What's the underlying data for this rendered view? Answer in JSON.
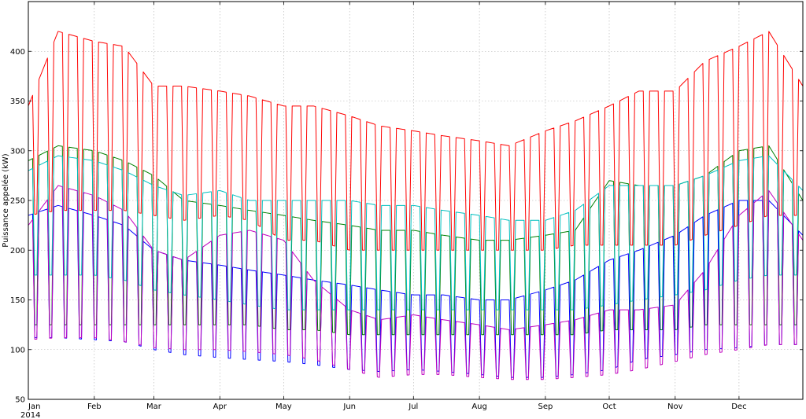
{
  "chart_data": {
    "type": "line",
    "title": "",
    "xlabel": "",
    "ylabel": "Puissance appelée (kW)",
    "ylim": [
      50,
      450
    ],
    "yticks": [
      50,
      100,
      150,
      200,
      250,
      300,
      350,
      400
    ],
    "xlim": [
      "2014-01-01",
      "2014-12-31"
    ],
    "xticks": [
      {
        "date": "2014-01-01",
        "label": "Jan"
      },
      {
        "date": "2014-02-01",
        "label": "Feb"
      },
      {
        "date": "2014-03-01",
        "label": "Mar"
      },
      {
        "date": "2014-04-01",
        "label": "Apr"
      },
      {
        "date": "2014-05-01",
        "label": "May"
      },
      {
        "date": "2014-06-01",
        "label": "Jun"
      },
      {
        "date": "2014-07-01",
        "label": "Jul"
      },
      {
        "date": "2014-08-01",
        "label": "Aug"
      },
      {
        "date": "2014-09-01",
        "label": "Sep"
      },
      {
        "date": "2014-10-01",
        "label": "Oct"
      },
      {
        "date": "2014-11-01",
        "label": "Nov"
      },
      {
        "date": "2014-12-01",
        "label": "Dec"
      }
    ],
    "year_label": "2014",
    "grid": true,
    "sampling": "daily",
    "series": [
      {
        "color": "#ff0000",
        "weekday_envelope": {
          "dates": [
            "2014-01-01",
            "2014-01-15",
            "2014-02-01",
            "2014-02-15",
            "2014-03-01",
            "2014-03-15",
            "2014-04-01",
            "2014-04-15",
            "2014-05-01",
            "2014-05-15",
            "2014-06-01",
            "2014-06-15",
            "2014-07-01",
            "2014-07-15",
            "2014-08-01",
            "2014-08-15",
            "2014-09-01",
            "2014-09-15",
            "2014-10-01",
            "2014-10-15",
            "2014-11-01",
            "2014-11-15",
            "2014-12-01",
            "2014-12-15",
            "2014-12-31"
          ],
          "weekday": [
            345,
            420,
            410,
            405,
            365,
            365,
            360,
            355,
            345,
            345,
            335,
            325,
            320,
            315,
            310,
            305,
            320,
            330,
            345,
            360,
            360,
            390,
            405,
            420,
            365
          ],
          "weekend": [
            235,
            240,
            240,
            240,
            235,
            230,
            235,
            230,
            210,
            210,
            200,
            200,
            200,
            200,
            200,
            200,
            200,
            205,
            205,
            205,
            205,
            215,
            225,
            235,
            235
          ]
        }
      },
      {
        "color": "#008000",
        "weekday_envelope": {
          "dates": [
            "2014-01-01",
            "2014-01-15",
            "2014-02-01",
            "2014-02-15",
            "2014-03-01",
            "2014-03-15",
            "2014-04-01",
            "2014-04-15",
            "2014-05-01",
            "2014-05-15",
            "2014-06-01",
            "2014-06-15",
            "2014-07-01",
            "2014-07-15",
            "2014-08-01",
            "2014-08-15",
            "2014-09-01",
            "2014-09-15",
            "2014-10-01",
            "2014-10-15",
            "2014-11-01",
            "2014-11-15",
            "2014-12-01",
            "2014-12-15",
            "2014-12-31"
          ],
          "weekday": [
            290,
            305,
            300,
            290,
            275,
            250,
            245,
            240,
            235,
            230,
            225,
            220,
            220,
            215,
            210,
            210,
            215,
            220,
            270,
            265,
            265,
            275,
            300,
            305,
            250
          ],
          "weekend": [
            125,
            125,
            125,
            125,
            125,
            125,
            125,
            125,
            120,
            120,
            115,
            115,
            115,
            115,
            115,
            115,
            115,
            115,
            120,
            120,
            120,
            125,
            125,
            125,
            125
          ]
        }
      },
      {
        "color": "#00bfbf",
        "weekday_envelope": {
          "dates": [
            "2014-01-01",
            "2014-01-15",
            "2014-02-01",
            "2014-02-15",
            "2014-03-01",
            "2014-03-15",
            "2014-04-01",
            "2014-04-15",
            "2014-05-01",
            "2014-05-15",
            "2014-06-01",
            "2014-06-15",
            "2014-07-01",
            "2014-07-15",
            "2014-08-01",
            "2014-08-15",
            "2014-09-01",
            "2014-09-15",
            "2014-10-01",
            "2014-10-15",
            "2014-11-01",
            "2014-11-15",
            "2014-12-01",
            "2014-12-15",
            "2014-12-31"
          ],
          "weekday": [
            280,
            295,
            290,
            280,
            265,
            255,
            260,
            250,
            250,
            250,
            250,
            245,
            245,
            240,
            235,
            230,
            230,
            240,
            265,
            265,
            265,
            275,
            290,
            295,
            260
          ],
          "weekend": [
            175,
            175,
            175,
            170,
            160,
            155,
            150,
            145,
            140,
            140,
            140,
            140,
            140,
            140,
            140,
            140,
            140,
            140,
            145,
            150,
            155,
            160,
            170,
            175,
            175
          ]
        }
      },
      {
        "color": "#0000ff",
        "weekday_envelope": {
          "dates": [
            "2014-01-01",
            "2014-01-15",
            "2014-02-01",
            "2014-02-15",
            "2014-03-01",
            "2014-03-15",
            "2014-04-01",
            "2014-04-15",
            "2014-05-01",
            "2014-05-15",
            "2014-06-01",
            "2014-06-15",
            "2014-07-01",
            "2014-07-15",
            "2014-08-01",
            "2014-08-15",
            "2014-09-01",
            "2014-09-15",
            "2014-10-01",
            "2014-10-15",
            "2014-11-01",
            "2014-11-15",
            "2014-12-01",
            "2014-12-15",
            "2014-12-31"
          ],
          "weekday": [
            235,
            245,
            235,
            225,
            200,
            190,
            185,
            180,
            175,
            170,
            165,
            160,
            155,
            155,
            150,
            150,
            160,
            170,
            190,
            200,
            215,
            235,
            250,
            250,
            215
          ],
          "weekend": [
            112,
            112,
            110,
            108,
            100,
            95,
            92,
            90,
            88,
            85,
            80,
            78,
            80,
            78,
            75,
            72,
            72,
            75,
            80,
            90,
            95,
            100,
            102,
            105,
            105
          ]
        }
      },
      {
        "color": "#bf00bf",
        "weekday_envelope": {
          "dates": [
            "2014-01-01",
            "2014-01-15",
            "2014-02-01",
            "2014-02-15",
            "2014-03-01",
            "2014-03-15",
            "2014-04-01",
            "2014-04-15",
            "2014-05-01",
            "2014-05-15",
            "2014-06-01",
            "2014-06-15",
            "2014-07-01",
            "2014-07-15",
            "2014-08-01",
            "2014-08-15",
            "2014-09-01",
            "2014-09-15",
            "2014-10-01",
            "2014-10-15",
            "2014-11-01",
            "2014-11-15",
            "2014-12-01",
            "2014-12-15",
            "2014-12-31"
          ],
          "weekday": [
            225,
            265,
            255,
            240,
            200,
            190,
            215,
            220,
            210,
            170,
            140,
            130,
            135,
            130,
            125,
            120,
            125,
            130,
            140,
            140,
            145,
            180,
            235,
            260,
            210
          ],
          "weekend": [
            110,
            112,
            112,
            108,
            102,
            100,
            100,
            98,
            95,
            90,
            80,
            72,
            75,
            75,
            72,
            70,
            70,
            72,
            75,
            80,
            88,
            95,
            100,
            105,
            105
          ]
        }
      }
    ]
  }
}
